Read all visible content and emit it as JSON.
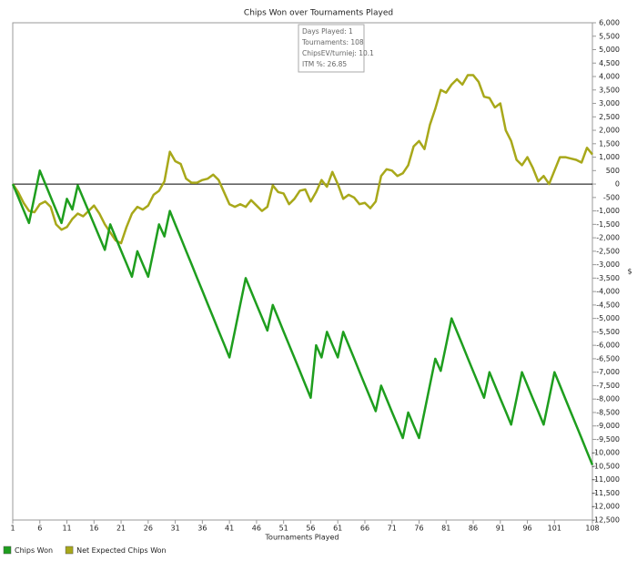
{
  "chart_data": {
    "type": "line",
    "title": "Chips Won over Tournaments Played",
    "x_label": "Tournaments Played",
    "y_label": "$",
    "x": [
      1,
      2,
      3,
      4,
      5,
      6,
      7,
      8,
      9,
      10,
      11,
      12,
      13,
      14,
      15,
      16,
      17,
      18,
      19,
      20,
      21,
      22,
      23,
      24,
      25,
      26,
      27,
      28,
      29,
      30,
      31,
      32,
      33,
      34,
      35,
      36,
      37,
      38,
      39,
      40,
      41,
      42,
      43,
      44,
      45,
      46,
      47,
      48,
      49,
      50,
      51,
      52,
      53,
      54,
      55,
      56,
      57,
      58,
      59,
      60,
      61,
      62,
      63,
      64,
      65,
      66,
      67,
      68,
      69,
      70,
      71,
      72,
      73,
      74,
      75,
      76,
      77,
      78,
      79,
      80,
      81,
      82,
      83,
      84,
      85,
      86,
      87,
      88,
      89,
      90,
      91,
      92,
      93,
      94,
      95,
      96,
      97,
      98,
      99,
      100,
      101,
      102,
      103,
      104,
      105,
      106,
      107,
      108
    ],
    "series": [
      {
        "name": "Chips Won",
        "color": "#1e9e1e",
        "values": [
          0,
          -480,
          -970,
          -1450,
          -480,
          500,
          10,
          -480,
          -970,
          -1450,
          -550,
          -950,
          -50,
          -530,
          -1010,
          -1490,
          -1970,
          -2450,
          -1500,
          -1990,
          -2480,
          -2960,
          -3450,
          -2500,
          -2980,
          -3450,
          -2480,
          -1500,
          -1950,
          -1000,
          -1500,
          -1990,
          -2490,
          -2980,
          -3480,
          -3970,
          -4470,
          -4960,
          -5460,
          -5950,
          -6450,
          -5470,
          -4480,
          -3500,
          -3990,
          -4480,
          -4960,
          -5450,
          -4500,
          -4990,
          -5490,
          -5980,
          -6470,
          -6960,
          -7460,
          -7950,
          -6000,
          -6450,
          -5500,
          -5980,
          -6450,
          -5500,
          -5990,
          -6480,
          -6980,
          -7470,
          -7960,
          -8450,
          -7500,
          -7990,
          -8480,
          -8960,
          -9450,
          -8500,
          -8980,
          -9450,
          -8470,
          -7480,
          -6500,
          -6950,
          -5980,
          -5000,
          -5490,
          -5980,
          -6480,
          -6970,
          -7460,
          -7950,
          -7000,
          -7490,
          -7980,
          -8460,
          -8950,
          -7980,
          -7000,
          -7490,
          -7980,
          -8460,
          -8950,
          -7980,
          -7000,
          -7490,
          -7990,
          -8480,
          -8970,
          -9460,
          -9960,
          -10450
        ]
      },
      {
        "name": "Net Expected Chips Won",
        "color": "#a8a81a",
        "values": [
          0,
          -300,
          -700,
          -1000,
          -1050,
          -750,
          -650,
          -850,
          -1500,
          -1700,
          -1600,
          -1300,
          -1100,
          -1200,
          -1000,
          -800,
          -1100,
          -1500,
          -1800,
          -2100,
          -2200,
          -1600,
          -1100,
          -850,
          -950,
          -800,
          -400,
          -250,
          100,
          1200,
          850,
          750,
          200,
          50,
          50,
          150,
          200,
          350,
          150,
          -300,
          -750,
          -850,
          -750,
          -850,
          -600,
          -800,
          -1000,
          -850,
          -50,
          -300,
          -350,
          -750,
          -550,
          -250,
          -200,
          -650,
          -300,
          150,
          -100,
          450,
          0,
          -550,
          -400,
          -500,
          -750,
          -700,
          -900,
          -650,
          300,
          550,
          500,
          300,
          400,
          700,
          1400,
          1600,
          1300,
          2200,
          2800,
          3500,
          3400,
          3700,
          3900,
          3700,
          4050,
          4050,
          3800,
          3250,
          3200,
          2850,
          3000,
          2000,
          1600,
          900,
          700,
          1000,
          600,
          100,
          300,
          0,
          500,
          1000,
          1000,
          950,
          900,
          800,
          1350,
          1100
        ]
      }
    ],
    "xlim": [
      1,
      108
    ],
    "xticks": [
      1,
      6,
      11,
      16,
      21,
      26,
      31,
      36,
      41,
      46,
      51,
      56,
      61,
      66,
      71,
      76,
      81,
      86,
      91,
      96,
      101,
      108
    ],
    "ylim": [
      -12500,
      6000
    ],
    "yticks": [
      {
        "value": 6000,
        "label": "6,000"
      },
      {
        "value": 5500,
        "label": "5,500"
      },
      {
        "value": 5000,
        "label": "5,000"
      },
      {
        "value": 4500,
        "label": "4,500"
      },
      {
        "value": 4000,
        "label": "4,000"
      },
      {
        "value": 3500,
        "label": "3,500"
      },
      {
        "value": 3000,
        "label": "3,000"
      },
      {
        "value": 2500,
        "label": "2,500"
      },
      {
        "value": 2000,
        "label": "2,000"
      },
      {
        "value": 1500,
        "label": "1,500"
      },
      {
        "value": 1000,
        "label": "1,000"
      },
      500,
      0,
      -500,
      {
        "value": -1000,
        "label": "-1,000"
      },
      {
        "value": -1500,
        "label": "-1,500"
      },
      {
        "value": -2000,
        "label": "-2,000"
      },
      {
        "value": -2500,
        "label": "-2,500"
      },
      {
        "value": -3000,
        "label": "-3,000"
      },
      {
        "value": -3500,
        "label": "-3,500"
      },
      {
        "value": -4000,
        "label": "-4,000"
      },
      {
        "value": -4500,
        "label": "-4,500"
      },
      {
        "value": -5000,
        "label": "-5,000"
      },
      {
        "value": -5500,
        "label": "-5,500"
      },
      {
        "value": -6000,
        "label": "-6,000"
      },
      {
        "value": -6500,
        "label": "-6,500"
      },
      {
        "value": -7000,
        "label": "-7,000"
      },
      {
        "value": -7500,
        "label": "-7,500"
      },
      {
        "value": -8000,
        "label": "-8,000"
      },
      {
        "value": -8500,
        "label": "-8,500"
      },
      {
        "value": -9000,
        "label": "-9,000"
      },
      {
        "value": -9500,
        "label": "-9,500"
      },
      {
        "value": -10000,
        "label": "-10,000"
      },
      {
        "value": -10500,
        "label": "-10,500"
      },
      {
        "value": -11000,
        "label": "-11,000"
      },
      {
        "value": -11500,
        "label": "-11,500"
      },
      {
        "value": -12000,
        "label": "-12,000"
      },
      {
        "value": -12500,
        "label": "-12,500"
      }
    ],
    "grid": false,
    "tooltip": [
      "Days Played: 1",
      "Tournaments: 108",
      "ChipsEV/turniej: 10.1",
      "ITM %: 26.85"
    ]
  }
}
